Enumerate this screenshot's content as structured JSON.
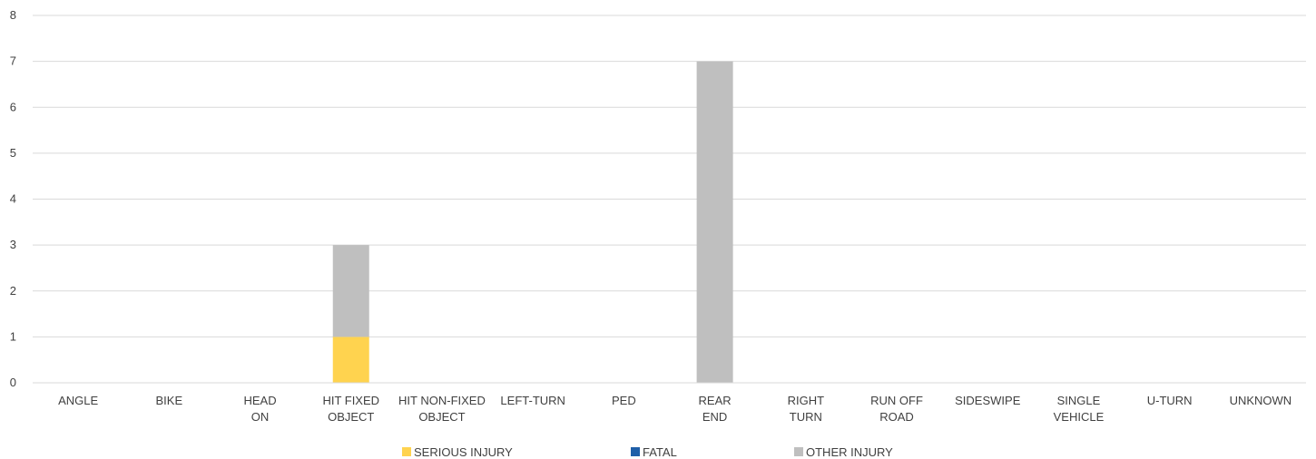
{
  "chart_data": {
    "type": "bar",
    "stacked": true,
    "categories": [
      [
        "ANGLE"
      ],
      [
        "BIKE"
      ],
      [
        "HEAD",
        "ON"
      ],
      [
        "HIT FIXED",
        "OBJECT"
      ],
      [
        "HIT NON-FIXED",
        "OBJECT"
      ],
      [
        "LEFT-TURN"
      ],
      [
        "PED"
      ],
      [
        "REAR",
        "END"
      ],
      [
        "RIGHT",
        "TURN"
      ],
      [
        "RUN OFF",
        "ROAD"
      ],
      [
        "SIDESWIPE"
      ],
      [
        "SINGLE",
        "VEHICLE"
      ],
      [
        "U-TURN"
      ],
      [
        "UNKNOWN"
      ]
    ],
    "series": [
      {
        "name": "SERIOUS INJURY",
        "color": "#FFD34F",
        "values": [
          0,
          0,
          0,
          1,
          0,
          0,
          0,
          0,
          0,
          0,
          0,
          0,
          0,
          0
        ]
      },
      {
        "name": "FATAL",
        "color": "#1F5FA8",
        "values": [
          0,
          0,
          0,
          0,
          0,
          0,
          0,
          0,
          0,
          0,
          0,
          0,
          0,
          0
        ]
      },
      {
        "name": "OTHER INJURY",
        "color": "#BFBFBF",
        "values": [
          0,
          0,
          0,
          2,
          0,
          0,
          0,
          7,
          0,
          0,
          0,
          0,
          0,
          0
        ]
      }
    ],
    "ylim": [
      0,
      8
    ],
    "yticks": [
      0,
      1,
      2,
      3,
      4,
      5,
      6,
      7,
      8
    ],
    "grid": true,
    "legend": "bottom"
  }
}
